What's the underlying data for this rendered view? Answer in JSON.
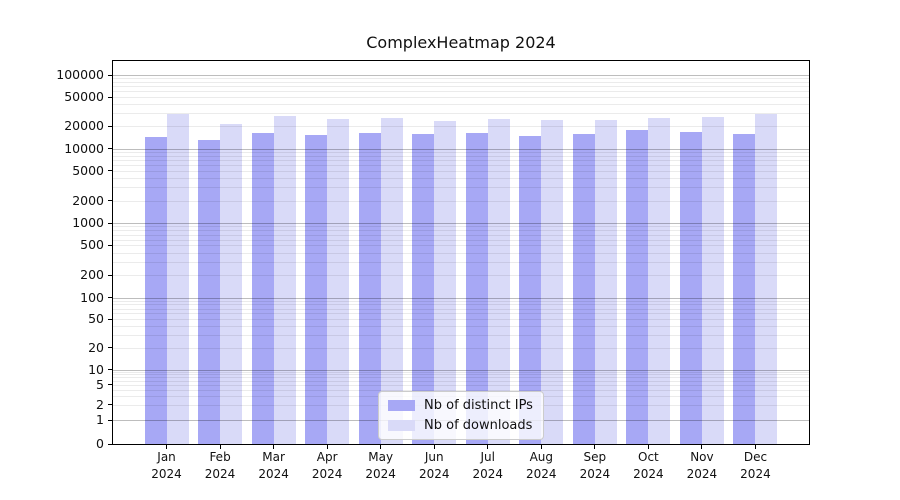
{
  "chart_data": {
    "type": "bar",
    "title": "ComplexHeatmap 2024",
    "categories": [
      "Jan",
      "Feb",
      "Mar",
      "Apr",
      "May",
      "Jun",
      "Jul",
      "Aug",
      "Sep",
      "Oct",
      "Nov",
      "Dec"
    ],
    "category_year": "2024",
    "series": [
      {
        "name": "Nb of distinct IPs",
        "color": "#a7a8f5",
        "values": [
          14400,
          13200,
          16200,
          15300,
          16500,
          15600,
          16100,
          15000,
          15600,
          17800,
          17000,
          15800
        ]
      },
      {
        "name": "Nb of downloads",
        "color": "#d9daf8",
        "values": [
          29800,
          21800,
          28000,
          25400,
          26000,
          23400,
          25400,
          24100,
          24700,
          26000,
          26900,
          29500
        ]
      }
    ],
    "yticks": [
      0,
      1,
      2,
      5,
      10,
      20,
      50,
      100,
      200,
      500,
      1000,
      2000,
      5000,
      10000,
      20000,
      50000,
      100000
    ],
    "ylim": [
      0,
      160000
    ],
    "yscale": "log-above-1-linear-below-1",
    "xlabel": "",
    "ylabel": "",
    "grid": "horizontal major and minor",
    "legend_position": "lower center"
  }
}
